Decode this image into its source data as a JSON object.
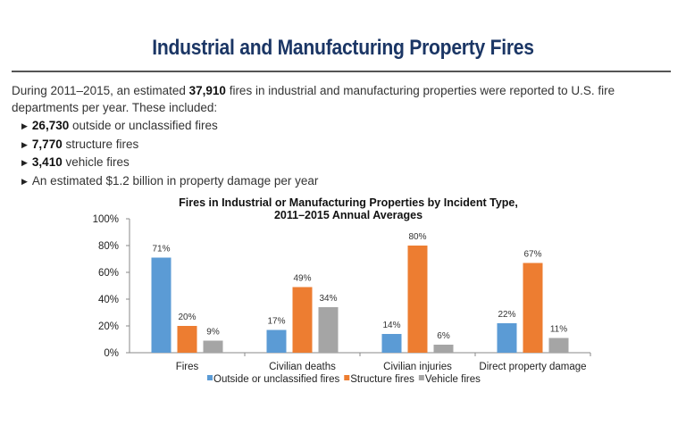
{
  "heading": "Industrial and Manufacturing Property Fires",
  "intro": {
    "before": "During 2011–2015, an estimated ",
    "bold": "37,910",
    "after": " fires in industrial and manufacturing properties were reported to U.S. fire departments per year. These included:"
  },
  "bullets": [
    {
      "bold": "26,730",
      "text": " outside or unclassified fires"
    },
    {
      "bold": "7,770",
      "text": " structure fires"
    },
    {
      "bold": "3,410",
      "text": " vehicle fires"
    },
    {
      "bold": "",
      "text": "An estimated $1.2 billion in property damage per year"
    }
  ],
  "chart_data": {
    "type": "bar",
    "title": [
      "Fires in Industrial or Manufacturing Properties by Incident Type,",
      "2011–2015 Annual Averages"
    ],
    "categories": [
      "Fires",
      "Civilian deaths",
      "Civilian injuries",
      "Direct property damage"
    ],
    "series": [
      {
        "name": "Outside or unclassified fires",
        "color": "#5b9bd5",
        "values": [
          71,
          17,
          14,
          22
        ]
      },
      {
        "name": "Structure fires",
        "color": "#ed7d31",
        "values": [
          20,
          49,
          80,
          67
        ]
      },
      {
        "name": "Vehicle fires",
        "color": "#a5a5a5",
        "values": [
          9,
          34,
          6,
          11
        ]
      }
    ],
    "ylim": [
      0,
      100
    ],
    "yticks": [
      "0%",
      "20%",
      "40%",
      "60%",
      "80%",
      "100%"
    ],
    "value_suffix": "%",
    "grid": false,
    "legend": "bottom"
  }
}
